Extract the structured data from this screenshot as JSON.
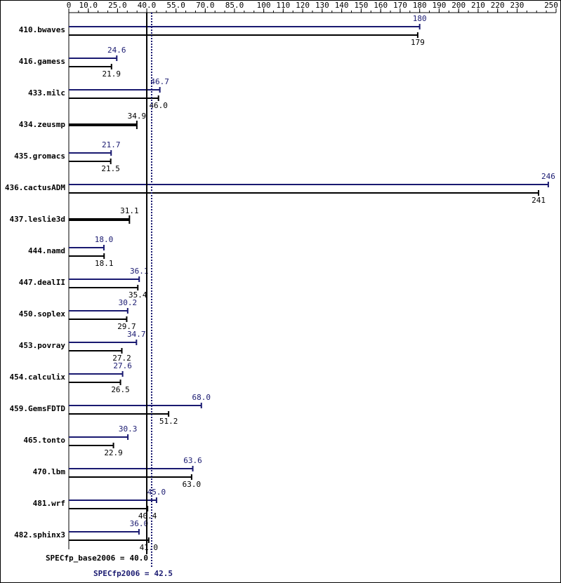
{
  "chart_data": {
    "type": "bar",
    "orientation": "horizontal",
    "categories": [
      "410.bwaves",
      "416.gamess",
      "433.milc",
      "434.zeusmp",
      "435.gromacs",
      "436.cactusADM",
      "437.leslie3d",
      "444.namd",
      "447.dealII",
      "450.soplex",
      "453.povray",
      "454.calculix",
      "459.GemsFDTD",
      "465.tonto",
      "470.lbm",
      "481.wrf",
      "482.sphinx3"
    ],
    "series": [
      {
        "color": "#191970",
        "values": [
          180,
          24.6,
          46.7,
          null,
          21.7,
          246,
          null,
          18.0,
          36.1,
          30.2,
          34.7,
          27.6,
          68.0,
          30.3,
          63.6,
          45.0,
          36.0
        ],
        "value_labels": [
          "180",
          "24.6",
          "46.7",
          null,
          "21.7",
          "246",
          null,
          "18.0",
          "36.1",
          "30.2",
          "34.7",
          "27.6",
          "68.0",
          "30.3",
          "63.6",
          "45.0",
          "36.0"
        ]
      },
      {
        "color": "#000000",
        "values": [
          179,
          21.9,
          46.0,
          34.9,
          21.5,
          241,
          31.1,
          18.1,
          35.4,
          29.7,
          27.2,
          26.5,
          51.2,
          22.9,
          63.0,
          40.4,
          41.0
        ],
        "value_labels": [
          "179",
          "21.9",
          "46.0",
          "34.9",
          "21.5",
          "241",
          "31.1",
          "18.1",
          "35.4",
          "29.7",
          "27.2",
          "26.5",
          "51.2",
          "22.9",
          "63.0",
          "40.4",
          "41.0"
        ]
      }
    ],
    "xlim": [
      0,
      250
    ],
    "xticks": [
      0,
      {
        "value": 10,
        "label": "10.0"
      },
      {
        "value": 25,
        "label": "25.0"
      },
      {
        "value": 40,
        "label": "40.0"
      },
      {
        "value": 55,
        "label": "55.0"
      },
      {
        "value": 70,
        "label": "70.0"
      },
      {
        "value": 85,
        "label": "85.0"
      },
      100,
      110,
      120,
      130,
      140,
      150,
      160,
      170,
      180,
      190,
      200,
      210,
      220,
      230,
      250
    ],
    "reference_lines": [
      {
        "text": "SPECfp_base2006 =",
        "value": 40,
        "value_label": "40.0",
        "color": "#000000"
      },
      {
        "text": "SPECfp2006 =",
        "value": 42.5,
        "value_label": "42.5",
        "color": "#191970"
      }
    ]
  }
}
